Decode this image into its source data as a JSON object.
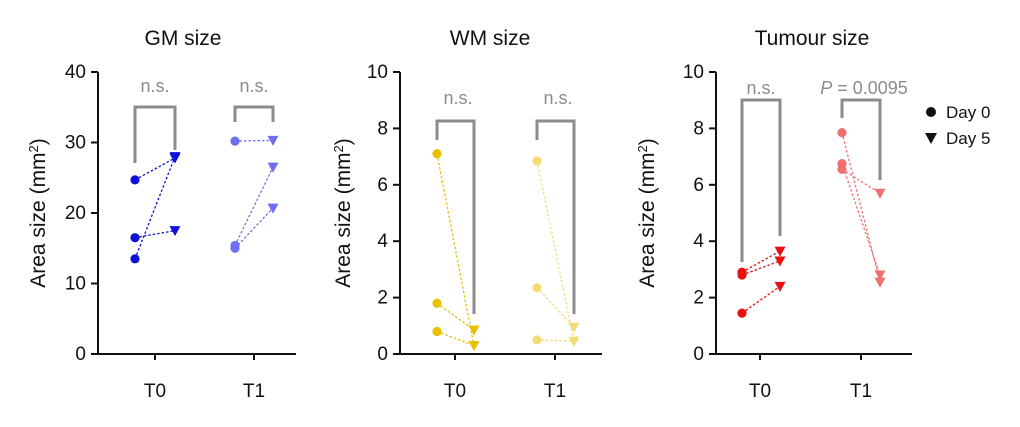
{
  "chart_data": [
    {
      "type": "scatter",
      "title": "GM size",
      "ylabel": "Area size (mm2)",
      "ylabel_base": "Area size (mm",
      "ylabel_sup": "2",
      "ylabel_close": ")",
      "ylim": [
        0,
        40
      ],
      "yticks": [
        0,
        10,
        20,
        30,
        40
      ],
      "ytick_labels": [
        "0",
        "10",
        "20",
        "30",
        "40"
      ],
      "categories": [
        "T0",
        "T1"
      ],
      "color_T0": "#1010d8",
      "color_T1": "#6e6ef0",
      "pairs": {
        "T0": [
          [
            24.7,
            27.8
          ],
          [
            16.5,
            17.5
          ],
          [
            13.5,
            28.0
          ]
        ],
        "T1": [
          [
            30.2,
            30.3
          ],
          [
            15.4,
            26.5
          ],
          [
            15.0,
            20.7
          ]
        ]
      },
      "annotations": [
        "n.s.",
        "n.s."
      ]
    },
    {
      "type": "scatter",
      "title": "WM size",
      "ylabel": "Area size (mm2)",
      "ylabel_base": "Area size (mm",
      "ylabel_sup": "2",
      "ylabel_close": ")",
      "ylim": [
        0,
        10
      ],
      "yticks": [
        0,
        2,
        4,
        6,
        8,
        10
      ],
      "ytick_labels": [
        "0",
        "2",
        "4",
        "6",
        "8",
        "10"
      ],
      "categories": [
        "T0",
        "T1"
      ],
      "color_T0": "#e8c000",
      "color_T1": "#f2dc78",
      "pairs": {
        "T0": [
          [
            7.1,
            0.3
          ],
          [
            1.8,
            0.85
          ],
          [
            0.8,
            0.3
          ]
        ],
        "T1": [
          [
            6.85,
            0.45
          ],
          [
            2.35,
            0.95
          ],
          [
            0.5,
            0.45
          ]
        ]
      },
      "annotations": [
        "n.s.",
        "n.s."
      ]
    },
    {
      "type": "scatter",
      "title": "Tumour size",
      "ylabel": "Area size (mm2)",
      "ylabel_base": "Area size (mm",
      "ylabel_sup": "2",
      "ylabel_close": ")",
      "ylim": [
        0,
        10
      ],
      "yticks": [
        0,
        2,
        4,
        6,
        8,
        10
      ],
      "ytick_labels": [
        "0",
        "2",
        "4",
        "6",
        "8",
        "10"
      ],
      "categories": [
        "T0",
        "T1"
      ],
      "color_T0": "#e81010",
      "color_T1": "#f07070",
      "pairs": {
        "T0": [
          [
            2.9,
            3.65
          ],
          [
            2.8,
            3.3
          ],
          [
            1.45,
            2.4
          ]
        ],
        "T1": [
          [
            7.85,
            2.55
          ],
          [
            6.75,
            2.8
          ],
          [
            6.55,
            5.7
          ]
        ]
      },
      "annotations": [
        "n.s.",
        "P = 0.0095"
      ],
      "annotation_p_italic": "P",
      "annotation_p_rest": " = 0.0095"
    }
  ],
  "legend": {
    "day0": "Day 0",
    "day5": "Day 5"
  }
}
